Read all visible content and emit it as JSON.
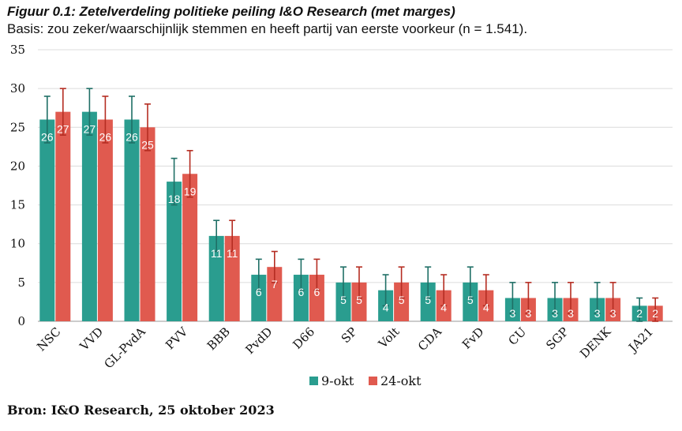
{
  "header": {
    "title": "Figuur 0.1: Zetelverdeling politieke peiling I&O Research (met marges)",
    "subtitle": "Basis: zou zeker/waarschijnlijk stemmen en heeft partij van eerste voorkeur (n = 1.541)."
  },
  "footer": {
    "source": "Bron: I&O Research, 25 oktober 2023"
  },
  "chart_data": {
    "type": "bar",
    "title": "Figuur 0.1: Zetelverdeling politieke peiling I&O Research (met marges)",
    "subtitle": "Basis: zou zeker/waarschijnlijk stemmen en heeft partij van eerste voorkeur (n = 1.541).",
    "xlabel": "",
    "ylabel": "",
    "ylim": [
      0,
      35
    ],
    "yticks": [
      0,
      5,
      10,
      15,
      20,
      25,
      30,
      35
    ],
    "grid": true,
    "legend_position": "bottom",
    "categories": [
      "NSC",
      "VVD",
      "GL-PvdA",
      "PVV",
      "BBB",
      "PvdD",
      "D66",
      "SP",
      "Volt",
      "CDA",
      "FvD",
      "CU",
      "SGP",
      "DENK",
      "JA21"
    ],
    "series": [
      {
        "name": "9-okt",
        "color": "#2a9d8f",
        "error_color": "#1f6f66",
        "values": [
          26,
          27,
          26,
          18,
          11,
          6,
          6,
          5,
          4,
          5,
          5,
          3,
          3,
          3,
          2
        ],
        "lower": [
          23,
          24,
          23,
          15,
          9,
          4,
          4,
          3,
          2,
          3,
          3,
          1,
          1,
          1,
          0
        ],
        "upper": [
          29,
          30,
          29,
          21,
          13,
          8,
          8,
          7,
          6,
          7,
          7,
          5,
          5,
          5,
          3
        ]
      },
      {
        "name": "24-okt",
        "color": "#e05a4f",
        "error_color": "#b52d22",
        "values": [
          27,
          26,
          25,
          19,
          11,
          7,
          6,
          5,
          5,
          4,
          4,
          3,
          3,
          3,
          2
        ],
        "lower": [
          24,
          23,
          22,
          16,
          9,
          5,
          4,
          3,
          3,
          2,
          2,
          1,
          1,
          1,
          0
        ],
        "upper": [
          30,
          29,
          28,
          22,
          13,
          9,
          8,
          7,
          7,
          6,
          6,
          5,
          5,
          5,
          3
        ]
      }
    ]
  }
}
